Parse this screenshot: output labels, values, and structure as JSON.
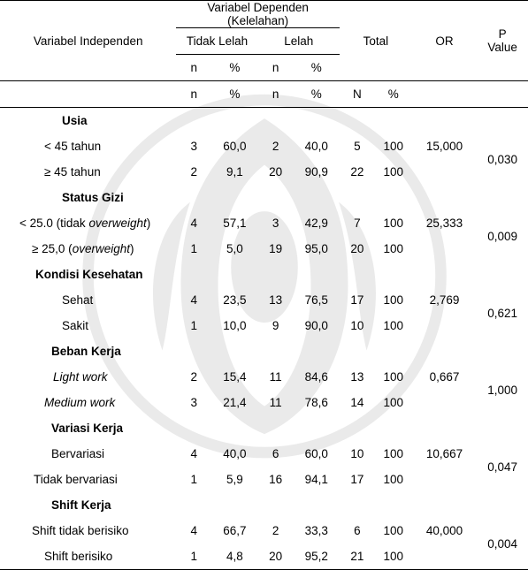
{
  "header": {
    "varIndep": "Variabel Independen",
    "varDep": "Variabel Dependen",
    "depSub": "(Kelelahan)",
    "tidakLelah": "Tidak Lelah",
    "lelah": "Lelah",
    "total": "Total",
    "or": "OR",
    "pvalue_l1": "P",
    "pvalue_l2": "Value",
    "n": "n",
    "pct": "%",
    "N": "N"
  },
  "sections": [
    {
      "title": "Usia",
      "rows": [
        {
          "label": "< 45 tahun",
          "n1": "3",
          "p1": "60,0",
          "n2": "2",
          "p2": "40,0",
          "N": "5",
          "P": "100",
          "or": "15,000",
          "labelClass": "row-label"
        },
        {
          "label": "≥ 45 tahun",
          "n1": "2",
          "p1": "9,1",
          "n2": "20",
          "p2": "90,9",
          "N": "22",
          "P": "100",
          "labelClass": "row-label-wide",
          "labelPad": "50"
        }
      ],
      "pvalue": "0,030"
    },
    {
      "title": "Status Gizi",
      "rows": [
        {
          "labelHtml": "< 25.0 (tidak <span class='italic-part'>overweight</span>)",
          "n1": "4",
          "p1": "57,1",
          "n2": "3",
          "p2": "42,9",
          "N": "7",
          "P": "100",
          "or": "25,333",
          "labelClass": "row-label-wide"
        },
        {
          "labelHtml": "≥ 25,0 (<span class='italic-part'>overweight</span>)",
          "n1": "1",
          "p1": "5,0",
          "n2": "19",
          "p2": "95,0",
          "N": "20",
          "P": "100",
          "labelClass": "row-label-wide",
          "labelPad": "36"
        }
      ],
      "pvalue": "0,009"
    },
    {
      "title": "Kondisi Kesehatan",
      "titlePad": "40",
      "rows": [
        {
          "label": "Sehat",
          "n1": "4",
          "p1": "23,5",
          "n2": "13",
          "p2": "76,5",
          "N": "17",
          "P": "100",
          "or": "2,769",
          "labelClass": "row-label",
          "labelPad": "70"
        },
        {
          "label": "Sakit",
          "n1": "1",
          "p1": "10,0",
          "n2": "9",
          "p2": "90,0",
          "N": "10",
          "P": "100",
          "labelClass": "row-label",
          "labelPad": "70"
        }
      ],
      "pvalue": "0,621"
    },
    {
      "title": "Beban Kerja",
      "titlePad": "58",
      "rows": [
        {
          "labelHtml": "<span class='italic-part'>Light work</span>",
          "n1": "2",
          "p1": "15,4",
          "n2": "11",
          "p2": "84,6",
          "N": "13",
          "P": "100",
          "or": "0,667",
          "labelClass": "row-label",
          "labelPad": "60"
        },
        {
          "labelHtml": "<span class='italic-part'>Medium work</span>",
          "n1": "3",
          "p1": "21,4",
          "n2": "11",
          "p2": "78,6",
          "N": "14",
          "P": "100",
          "labelClass": "row-label",
          "labelPad": "50"
        }
      ],
      "pvalue": "1,000"
    },
    {
      "title": "Variasi Kerja",
      "titlePad": "58",
      "rows": [
        {
          "label": "Bervariasi",
          "n1": "4",
          "p1": "40,0",
          "n2": "6",
          "p2": "60,0",
          "N": "10",
          "P": "100",
          "or": "10,667",
          "labelClass": "row-label",
          "labelPad": "58"
        },
        {
          "label": "Tidak bervariasi",
          "n1": "1",
          "p1": "5,9",
          "n2": "16",
          "p2": "94,1",
          "N": "17",
          "P": "100",
          "labelClass": "row-label",
          "labelPad": "38"
        }
      ],
      "pvalue": "0,047"
    },
    {
      "title": "Shift Kerja",
      "titlePad": "58",
      "rows": [
        {
          "label": "Shift tidak berisiko",
          "n1": "4",
          "p1": "66,7",
          "n2": "2",
          "p2": "33,3",
          "N": "6",
          "P": "100",
          "or": "40,000",
          "labelClass": "row-label",
          "labelPad": "36"
        },
        {
          "label": "Shift berisiko",
          "n1": "1",
          "p1": "4,8",
          "n2": "20",
          "p2": "95,2",
          "N": "21",
          "P": "100",
          "labelClass": "row-label",
          "labelPad": "50"
        }
      ],
      "pvalue": "0,004"
    }
  ],
  "colors": {
    "text": "#000000",
    "background": "#ffffff",
    "border": "#000000"
  },
  "fontSizePt": 10
}
